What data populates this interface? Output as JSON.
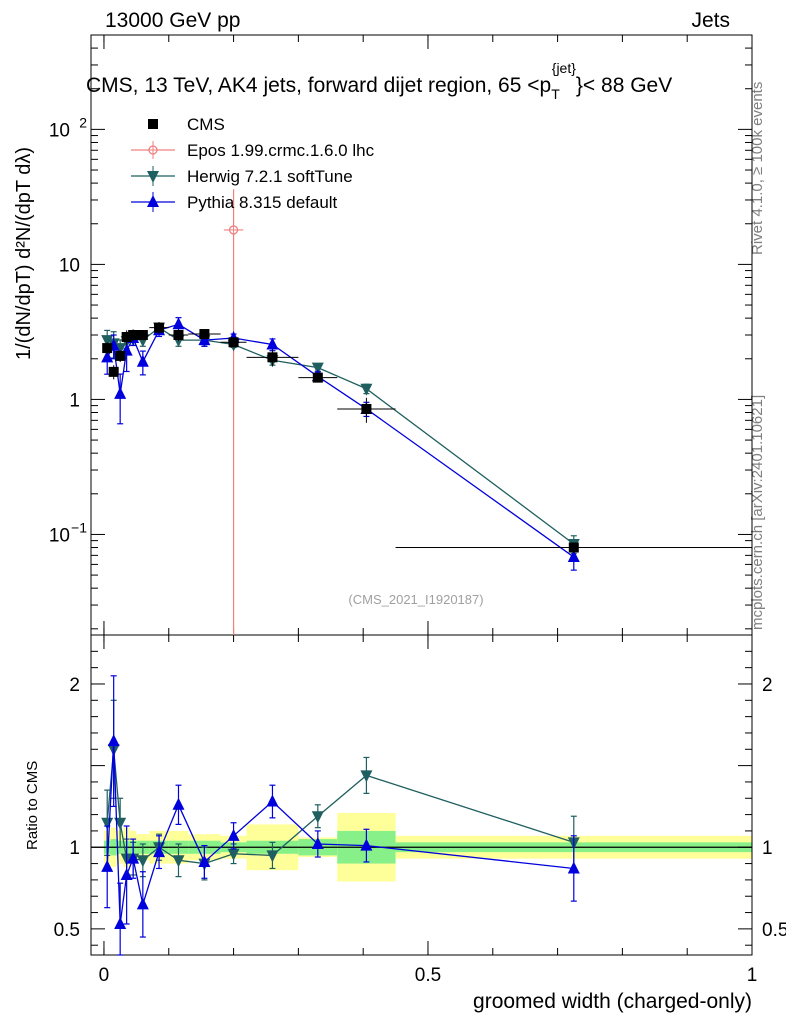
{
  "header": {
    "energy": "13000 GeV pp",
    "category": "Jets"
  },
  "side_labels": {
    "rivet": "Rivet 4.1.0, ≥ 100k events",
    "site": "mcplots.cern.ch [arXiv:2401.10621]"
  },
  "chart_data": {
    "type": "line",
    "title_parts": {
      "main": "CMS, 13 TeV, AK4 jets, forward dijet region, 65 <p",
      "sub": "T",
      "sup": "{jet}",
      "tail": "}< 88 GeV"
    },
    "analysis_id": "(CMS_2021_I1920187)",
    "xlabel": "groomed width (charged-only)",
    "ylabel_main": "1/(dN/dpT) d²N/(dpT dλ)",
    "ylabel_ratio": "Ratio to CMS",
    "xlim": [
      -0.02,
      1.0
    ],
    "ylim_main": [
      0.018,
      500
    ],
    "yscale_main": "log",
    "ylim_ratio": [
      0.34,
      2.3
    ],
    "x_ticks": [
      {
        "value": 0,
        "label": "0"
      },
      {
        "value": 0.5,
        "label": "0.5"
      },
      {
        "value": 1,
        "label": "1"
      }
    ],
    "y_ticks_main": [
      {
        "value": 0.1,
        "label": "10",
        "sup": "−1"
      },
      {
        "value": 1,
        "label": "1"
      },
      {
        "value": 10,
        "label": "10"
      },
      {
        "value": 100,
        "label": "10",
        "sup": "2"
      }
    ],
    "y_ticks_ratio": [
      {
        "value": 0.5,
        "label": "0.5"
      },
      {
        "value": 1,
        "label": "1"
      },
      {
        "value": 2,
        "label": "2"
      }
    ],
    "legend": [
      {
        "name": "CMS",
        "color": "#000000",
        "marker": "square"
      },
      {
        "name": "Epos 1.99.crmc.1.6.0 lhc",
        "color": "#f08080",
        "marker": "open-cross"
      },
      {
        "name": "Herwig 7.2.1 softTune",
        "color": "#1f5f5f",
        "marker": "triangle-down"
      },
      {
        "name": "Pythia 8.315 default",
        "color": "#0000dd",
        "marker": "triangle-up"
      }
    ],
    "data": {
      "name": "CMS",
      "x": [
        0.005,
        0.015,
        0.025,
        0.035,
        0.045,
        0.06,
        0.085,
        0.115,
        0.155,
        0.2,
        0.26,
        0.33,
        0.405,
        0.725
      ],
      "y": [
        2.4,
        1.6,
        2.1,
        2.9,
        3.0,
        3.0,
        3.4,
        3.0,
        3.05,
        2.65,
        2.05,
        1.45,
        0.85,
        0.08
      ],
      "xlo": [
        0.0,
        0.01,
        0.02,
        0.03,
        0.04,
        0.05,
        0.07,
        0.1,
        0.13,
        0.18,
        0.22,
        0.3,
        0.36,
        0.45
      ],
      "xhi": [
        0.01,
        0.02,
        0.03,
        0.04,
        0.05,
        0.07,
        0.1,
        0.13,
        0.18,
        0.22,
        0.3,
        0.36,
        0.45,
        1.0
      ],
      "unc_stat": [
        0.04,
        0.05,
        0.04,
        0.04,
        0.04,
        0.04,
        0.04,
        0.04,
        0.04,
        0.03,
        0.04,
        0.05,
        0.1,
        0.03
      ],
      "unc_tot": [
        0.1,
        0.12,
        0.1,
        0.12,
        0.1,
        0.08,
        0.1,
        0.1,
        0.08,
        0.07,
        0.14,
        0.06,
        0.21,
        0.07
      ]
    },
    "series": [
      {
        "name": "Epos 1.99.crmc.1.6.0 lhc",
        "color": "#f08080",
        "x": [
          0.2
        ],
        "y": [
          18.0
        ],
        "y_err_lo": [
          17.999
        ],
        "y_err_hi": [
          18.0
        ],
        "x_err": [
          0.015
        ]
      },
      {
        "name": "Herwig 7.2.1 softTune",
        "color": "#1f5f5f",
        "x": [
          0.005,
          0.015,
          0.025,
          0.035,
          0.045,
          0.06,
          0.085,
          0.115,
          0.155,
          0.2,
          0.26,
          0.33,
          0.405,
          0.725
        ],
        "y": [
          2.75,
          2.6,
          2.4,
          2.7,
          2.8,
          2.75,
          3.4,
          2.75,
          2.75,
          2.55,
          1.95,
          1.72,
          1.2,
          0.085
        ],
        "rel_err": [
          0.18,
          0.22,
          0.15,
          0.12,
          0.1,
          0.1,
          0.08,
          0.1,
          0.1,
          0.05,
          0.08,
          0.06,
          0.08,
          0.15
        ],
        "ratio": [
          1.15,
          1.6,
          1.15,
          0.93,
          0.93,
          0.92,
          1.0,
          0.92,
          0.9,
          0.96,
          0.95,
          1.19,
          1.44,
          1.03
        ],
        "ratio_err": [
          0.2,
          0.3,
          0.15,
          0.12,
          0.1,
          0.1,
          0.08,
          0.1,
          0.1,
          0.06,
          0.08,
          0.07,
          0.11,
          0.16
        ]
      },
      {
        "name": "Pythia 8.315 default",
        "color": "#0000dd",
        "x": [
          0.005,
          0.015,
          0.025,
          0.035,
          0.045,
          0.06,
          0.085,
          0.115,
          0.155,
          0.2,
          0.26,
          0.33,
          0.405,
          0.725
        ],
        "y": [
          2.05,
          2.5,
          1.1,
          2.3,
          2.85,
          1.9,
          3.25,
          3.6,
          2.75,
          2.85,
          2.55,
          1.48,
          0.85,
          0.068
        ],
        "rel_err": [
          0.25,
          0.2,
          0.4,
          0.3,
          0.12,
          0.2,
          0.1,
          0.12,
          0.1,
          0.07,
          0.1,
          0.08,
          0.12,
          0.2
        ],
        "ratio": [
          0.88,
          1.65,
          0.53,
          0.83,
          0.93,
          0.65,
          0.97,
          1.26,
          0.91,
          1.07,
          1.28,
          1.02,
          1.01,
          0.87
        ],
        "ratio_err": [
          0.25,
          0.4,
          0.25,
          0.3,
          0.12,
          0.2,
          0.1,
          0.12,
          0.1,
          0.08,
          0.1,
          0.08,
          0.1,
          0.2
        ]
      }
    ]
  }
}
